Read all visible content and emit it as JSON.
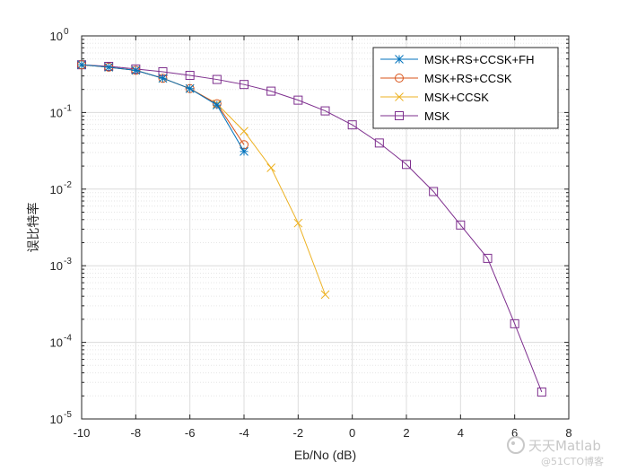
{
  "chart_data": {
    "type": "line",
    "title": "",
    "xlabel": "Eb/No (dB)",
    "ylabel": "误比特率",
    "xlim": [
      -10,
      8
    ],
    "ylim": [
      1e-05,
      1
    ],
    "yscale": "log",
    "grid": true,
    "x_ticks": [
      "-10",
      "-8",
      "-6",
      "-4",
      "-2",
      "0",
      "2",
      "4",
      "6",
      "8"
    ],
    "y_ticks": [
      {
        "base": "10",
        "exp": "-5"
      },
      {
        "base": "10",
        "exp": "-4"
      },
      {
        "base": "10",
        "exp": "-3"
      },
      {
        "base": "10",
        "exp": "-2"
      },
      {
        "base": "10",
        "exp": "-1"
      },
      {
        "base": "10",
        "exp": "0"
      }
    ],
    "legend_position": "top-right",
    "series": [
      {
        "name": "MSK+RS+CCSK+FH",
        "color": "#0072BD",
        "marker": "star",
        "x": [
          -10,
          -9,
          -8,
          -7,
          -6,
          -5,
          -4
        ],
        "y": [
          0.42,
          0.39,
          0.355,
          0.28,
          0.205,
          0.125,
          0.031
        ]
      },
      {
        "name": "MSK+RS+CCSK",
        "color": "#D95319",
        "marker": "circle",
        "x": [
          -10,
          -9,
          -8,
          -7,
          -6,
          -5,
          -4
        ],
        "y": [
          0.42,
          0.39,
          0.355,
          0.28,
          0.205,
          0.13,
          0.038
        ]
      },
      {
        "name": "MSK+CCSK",
        "color": "#EDB120",
        "marker": "x",
        "x": [
          -10,
          -9,
          -8,
          -7,
          -6,
          -5,
          -4,
          -3,
          -2,
          -1
        ],
        "y": [
          0.42,
          0.39,
          0.355,
          0.28,
          0.205,
          0.13,
          0.057,
          0.019,
          0.0036,
          0.00042
        ]
      },
      {
        "name": "MSK",
        "color": "#7E2F8E",
        "marker": "square",
        "x": [
          -10,
          -9,
          -8,
          -7,
          -6,
          -5,
          -4,
          -3,
          -2,
          -1,
          0,
          1,
          2,
          3,
          4,
          5,
          6,
          7
        ],
        "y": [
          0.42,
          0.4,
          0.37,
          0.34,
          0.305,
          0.27,
          0.232,
          0.19,
          0.145,
          0.105,
          0.069,
          0.04,
          0.021,
          0.0093,
          0.0034,
          0.00125,
          0.000175,
          2.25e-05
        ]
      }
    ]
  },
  "watermark": {
    "line1": "天天Matlab",
    "line2": "@51CTO博客"
  }
}
